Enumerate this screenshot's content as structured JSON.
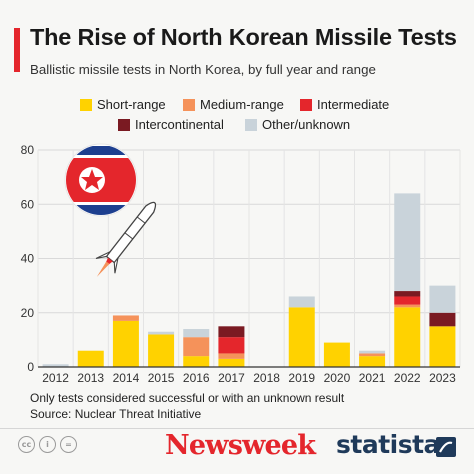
{
  "header": {
    "title": "The Rise of North Korean Missile Tests",
    "subtitle": "Ballistic missile tests in North Korea, by full year and range"
  },
  "chart_data": {
    "type": "bar",
    "stacked": true,
    "title": "The Rise of North Korean Missile Tests",
    "subtitle": "Ballistic missile tests in North Korea, by full year and range",
    "xlabel": "",
    "ylabel": "",
    "ylim": [
      0,
      80
    ],
    "yticks": [
      0,
      20,
      40,
      60,
      80
    ],
    "grid": true,
    "legend_position": "top",
    "categories": [
      "2012",
      "2013",
      "2014",
      "2015",
      "2016",
      "2017",
      "2018",
      "2019",
      "2020",
      "2021",
      "2022",
      "2023"
    ],
    "series": [
      {
        "name": "Short-range",
        "color": "#ffd200",
        "values": [
          0,
          6,
          17,
          12,
          4,
          3,
          0,
          22,
          9,
          4,
          22,
          15
        ]
      },
      {
        "name": "Medium-range",
        "color": "#f5925a",
        "values": [
          0,
          0,
          2,
          0,
          7,
          2,
          0,
          0,
          0,
          1,
          1,
          0
        ]
      },
      {
        "name": "Intermediate",
        "color": "#e4262c",
        "values": [
          0,
          0,
          0,
          0,
          0,
          6,
          0,
          0,
          0,
          0,
          3,
          0
        ]
      },
      {
        "name": "Intercontinental",
        "color": "#7a1a22",
        "values": [
          0,
          0,
          0,
          0,
          0,
          4,
          0,
          0,
          0,
          0,
          2,
          5
        ]
      },
      {
        "name": "Other/unknown",
        "color": "#c9d3da",
        "values": [
          1,
          0,
          0,
          1,
          3,
          0,
          0,
          4,
          0,
          1,
          36,
          10
        ]
      }
    ]
  },
  "footnotes": {
    "note": "Only tests considered successful or with an unknown result",
    "source": "Source: Nuclear Threat Initiative"
  },
  "branding": {
    "license_icons": [
      "cc-icon",
      "info-icon",
      "equals-icon"
    ],
    "newsweek": "Newsweek",
    "statista": "statista"
  }
}
